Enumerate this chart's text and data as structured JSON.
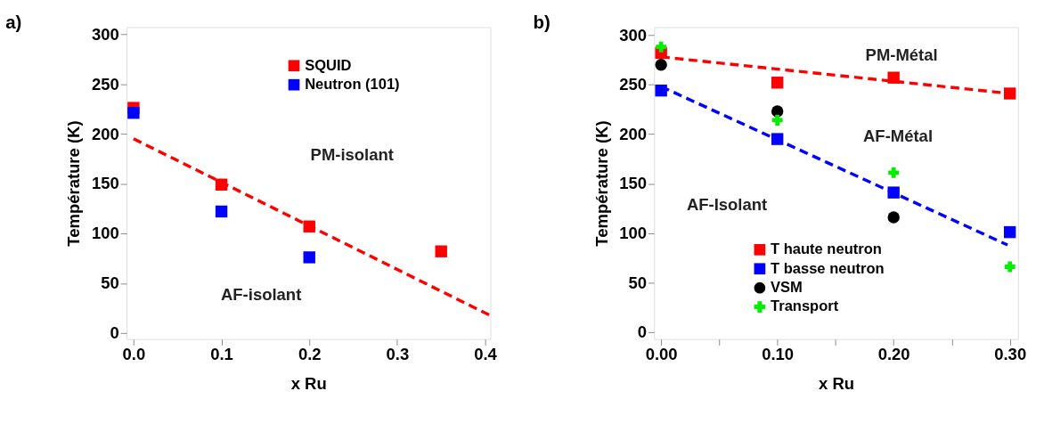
{
  "chart_data": [
    {
      "type": "scatter",
      "title": "a)",
      "xlabel": "x Ru",
      "ylabel": "Température (K)",
      "xlim": [
        -0.008,
        0.406
      ],
      "ylim": [
        -6,
        307
      ],
      "xticks": [
        {
          "value": 0,
          "label": "0.0"
        },
        0.1,
        0.2,
        0.3,
        0.4
      ],
      "yticks": [
        0,
        50,
        100,
        150,
        200,
        250,
        300
      ],
      "grid": false,
      "legend": "top right",
      "series": [
        {
          "name": "SQUID",
          "color": "#ff0000",
          "marker": "square",
          "x": [
            0,
            0.1,
            0.2,
            0.35
          ],
          "values": [
            226,
            149,
            107,
            82
          ]
        },
        {
          "name": "Neutron (101)",
          "color": "#0000ff",
          "marker": "square",
          "x": [
            0,
            0.1,
            0.2
          ],
          "values": [
            221,
            122,
            76
          ]
        },
        {
          "type": "line",
          "color": "#ff0000",
          "line_style": "dashed",
          "x": [
            0,
            0.405
          ],
          "values": [
            195,
            18
          ]
        }
      ],
      "annotations": [
        "PM-isolant",
        "AF-isolant"
      ]
    },
    {
      "type": "scatter",
      "title": "b)",
      "xlabel": "x Ru",
      "ylabel": "Température (K)",
      "xlim": [
        -0.006,
        0.307
      ],
      "ylim": [
        -7,
        308
      ],
      "xticks": [
        {
          "value": 0,
          "label": "0.00"
        },
        {
          "value": 0.05,
          "label": null
        },
        {
          "value": 0.1,
          "label": "0.10"
        },
        {
          "value": 0.15,
          "label": null
        },
        {
          "value": 0.2,
          "label": "0.20"
        },
        {
          "value": 0.25,
          "label": null
        },
        {
          "value": 0.3,
          "label": "0.30"
        }
      ],
      "yticks": [
        0,
        50,
        100,
        150,
        200,
        250,
        300
      ],
      "grid": false,
      "legend": "bottom right",
      "series": [
        {
          "name": "T haute neutron",
          "color": "#ff0000",
          "marker": "square",
          "x": [
            0,
            0.1,
            0.2,
            0.3
          ],
          "values": [
            282,
            252,
            257,
            241
          ]
        },
        {
          "name": "T basse neutron",
          "color": "#0000ff",
          "marker": "square",
          "x": [
            0,
            0.1,
            0.2,
            0.3
          ],
          "values": [
            244,
            195,
            141,
            101
          ]
        },
        {
          "name": "VSM",
          "color": "#000000",
          "marker": "circle",
          "x": [
            0,
            0.1,
            0.2
          ],
          "values": [
            270,
            223,
            116
          ]
        },
        {
          "name": "Transport",
          "color": "#00ee00",
          "marker": "cross",
          "x": [
            0,
            0.1,
            0.2,
            0.3
          ],
          "values": [
            288,
            214,
            161,
            66
          ]
        },
        {
          "type": "line",
          "color": "#ff0000",
          "line_style": "dashed",
          "x": [
            0,
            0.3
          ],
          "values": [
            278,
            241
          ]
        },
        {
          "type": "line",
          "color": "#0000ff",
          "line_style": "dashed",
          "x": [
            0,
            0.298
          ],
          "values": [
            248,
            88
          ]
        }
      ],
      "annotations": [
        "PM-Métal",
        "AF-Métal",
        "AF-Isolant"
      ]
    }
  ]
}
